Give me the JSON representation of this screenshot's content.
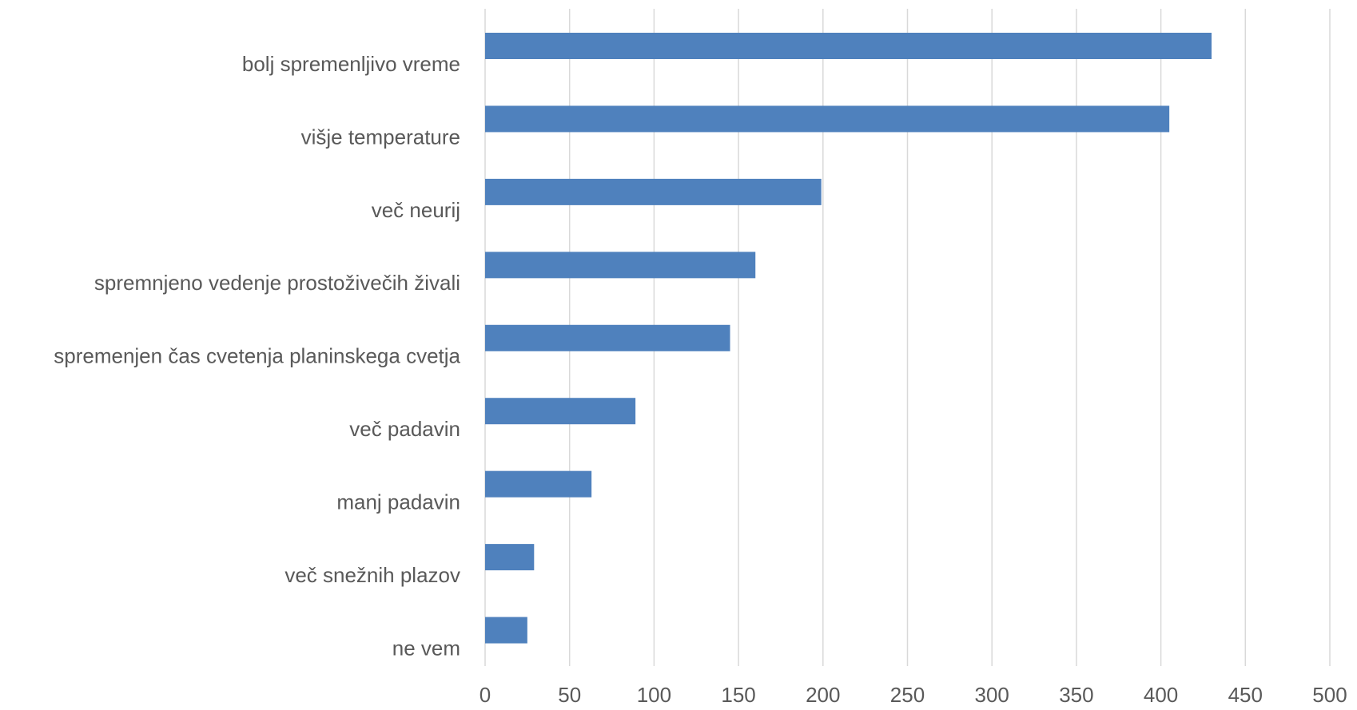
{
  "chart_data": {
    "type": "barh",
    "categories": [
      "bolj spremenljivo vreme",
      "višje temperature",
      "več neurij",
      "spremnjeno vedenje prostoživečih živali",
      "spremenjen čas cvetenja planinskega cvetja",
      "več padavin",
      "manj padavin",
      "več snežnih plazov",
      "ne vem"
    ],
    "values": [
      430,
      405,
      199,
      160,
      145,
      89,
      63,
      29,
      25
    ],
    "color": "#4f81bd",
    "xlim": [
      0,
      500
    ],
    "xticks": [
      0,
      50,
      100,
      150,
      200,
      250,
      300,
      350,
      400,
      450,
      500
    ],
    "grid": true
  }
}
